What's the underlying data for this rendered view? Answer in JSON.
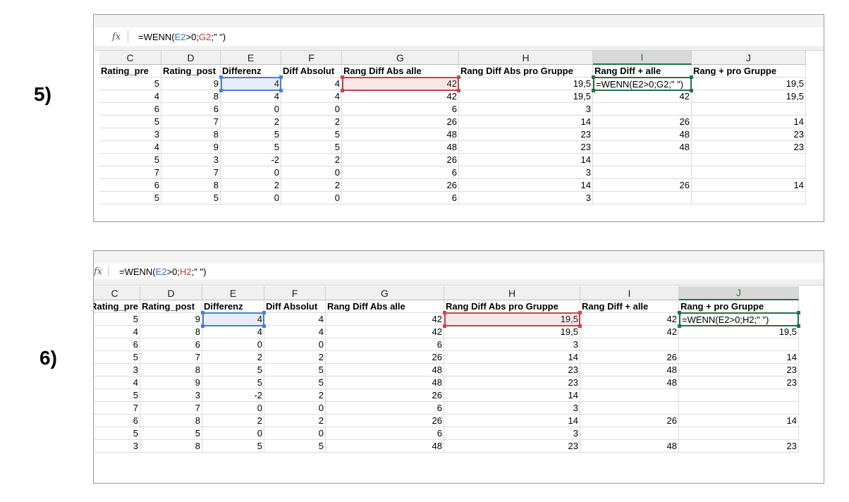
{
  "labels": {
    "step5": "5)",
    "step6": "6)"
  },
  "fx_icon": "fx-icon",
  "panel1": {
    "formula": {
      "prefix": "=WENN(",
      "ref1": "E2",
      "mid": ">0;",
      "ref2": "G2",
      "suffix": ";\" \")"
    },
    "columns": [
      "C",
      "D",
      "E",
      "F",
      "G",
      "H",
      "I",
      "J"
    ],
    "headers": [
      "Rating_pre",
      "Rating_post",
      "Differenz",
      "Diff Absolut",
      "Rang Diff Abs alle",
      "Rang Diff Abs pro Gruppe",
      "Rang Diff + alle",
      "Rang + pro Gruppe"
    ],
    "rows": [
      [
        "5",
        "9",
        "4",
        "4",
        "42",
        "19,5",
        "=WENN(E2>0;G2;\" \")",
        "19,5"
      ],
      [
        "4",
        "8",
        "4",
        "4",
        "42",
        "19,5",
        "42",
        "19,5"
      ],
      [
        "6",
        "6",
        "0",
        "0",
        "6",
        "3",
        "",
        ""
      ],
      [
        "5",
        "7",
        "2",
        "2",
        "26",
        "14",
        "26",
        "14"
      ],
      [
        "3",
        "8",
        "5",
        "5",
        "48",
        "23",
        "48",
        "23"
      ],
      [
        "4",
        "9",
        "5",
        "5",
        "48",
        "23",
        "48",
        "23"
      ],
      [
        "5",
        "3",
        "-2",
        "2",
        "26",
        "14",
        "",
        ""
      ],
      [
        "7",
        "7",
        "0",
        "0",
        "6",
        "3",
        "",
        ""
      ],
      [
        "6",
        "8",
        "2",
        "2",
        "26",
        "14",
        "26",
        "14"
      ],
      [
        "5",
        "5",
        "0",
        "0",
        "6",
        "3",
        "",
        ""
      ]
    ]
  },
  "panel2": {
    "formula": {
      "prefix": "=WENN(",
      "ref1": "E2",
      "mid": ">0;",
      "ref2": "H2",
      "suffix": ";\" \")"
    },
    "columns": [
      "C",
      "D",
      "E",
      "F",
      "G",
      "H",
      "I",
      "J"
    ],
    "headers": [
      "Rating_pre",
      "Rating_post",
      "Differenz",
      "Diff Absolut",
      "Rang Diff Abs alle",
      "Rang Diff Abs pro Gruppe",
      "Rang Diff + alle",
      "Rang + pro Gruppe"
    ],
    "rows": [
      [
        "5",
        "9",
        "4",
        "4",
        "42",
        "19,5",
        "42",
        "=WENN(E2>0;H2;\" \")"
      ],
      [
        "4",
        "8",
        "4",
        "4",
        "42",
        "19,5",
        "42",
        "19,5"
      ],
      [
        "6",
        "6",
        "0",
        "0",
        "6",
        "3",
        "",
        ""
      ],
      [
        "5",
        "7",
        "2",
        "2",
        "26",
        "14",
        "26",
        "14"
      ],
      [
        "3",
        "8",
        "5",
        "5",
        "48",
        "23",
        "48",
        "23"
      ],
      [
        "4",
        "9",
        "5",
        "5",
        "48",
        "23",
        "48",
        "23"
      ],
      [
        "5",
        "3",
        "-2",
        "2",
        "26",
        "14",
        "",
        ""
      ],
      [
        "7",
        "7",
        "0",
        "0",
        "6",
        "3",
        "",
        ""
      ],
      [
        "6",
        "8",
        "2",
        "2",
        "26",
        "14",
        "26",
        "14"
      ],
      [
        "5",
        "5",
        "0",
        "0",
        "6",
        "3",
        "",
        ""
      ],
      [
        "3",
        "8",
        "5",
        "5",
        "48",
        "23",
        "48",
        "23"
      ]
    ]
  },
  "colors": {
    "active_col": "#217346",
    "ref_blue": "#4a7fd4",
    "ref_red": "#c8444d"
  }
}
